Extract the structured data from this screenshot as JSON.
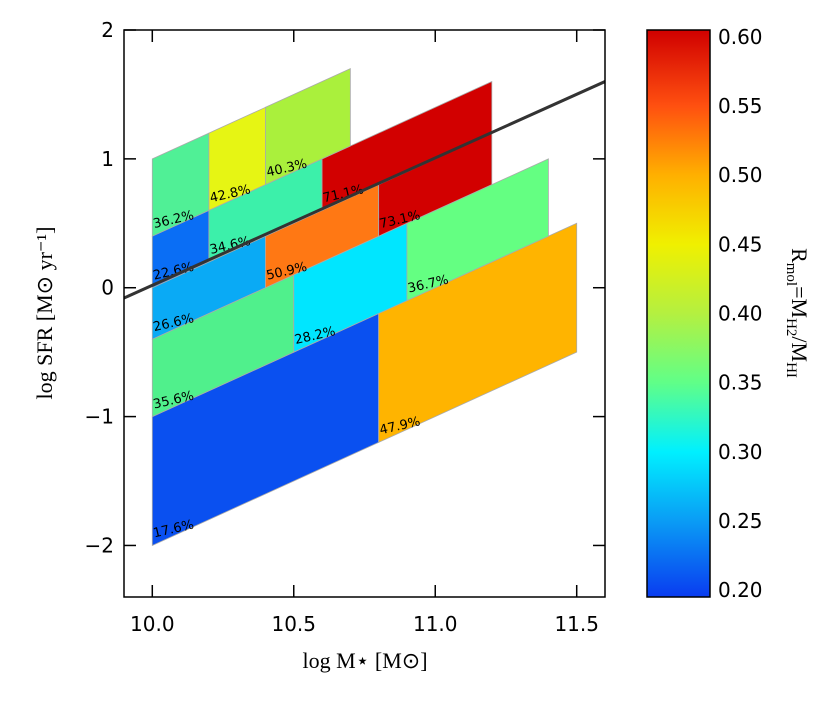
{
  "chart_data": {
    "type": "heatmap",
    "xlabel": "log M⋆ [M⊙]",
    "ylabel": "log SFR [M⊙ yr⁻¹]",
    "colorbar_label_parts": [
      "R",
      "mol",
      "=M",
      "H2",
      "/M",
      "HI"
    ],
    "xlim": [
      9.9,
      11.6
    ],
    "ylim": [
      -2.4,
      2.0
    ],
    "xticks": [
      {
        "value": 10.0,
        "label": "10.0"
      },
      {
        "value": 10.5,
        "label": "10.5"
      },
      {
        "value": 11.0,
        "label": "11.0"
      },
      {
        "value": 11.5,
        "label": "11.5"
      }
    ],
    "yticks": [
      {
        "value": -2,
        "label": "−2"
      },
      {
        "value": -1,
        "label": "−1"
      },
      0,
      1,
      2
    ],
    "clim": [
      0.195,
      0.605
    ],
    "cticks": [
      {
        "value": 0.2,
        "label": "0.20"
      },
      {
        "value": 0.25,
        "label": "0.25"
      },
      {
        "value": 0.3,
        "label": "0.30"
      },
      {
        "value": 0.35,
        "label": "0.35"
      },
      {
        "value": 0.4,
        "label": "0.40"
      },
      {
        "value": 0.45,
        "label": "0.45"
      },
      {
        "value": 0.5,
        "label": "0.50"
      },
      {
        "value": 0.55,
        "label": "0.55"
      },
      {
        "value": 0.6,
        "label": "0.60"
      }
    ],
    "slope": 1,
    "cells": [
      {
        "x": [
          10.0,
          10.8
        ],
        "y": [
          -2.0,
          -1.0
        ],
        "value": 17.6,
        "value_label": "17.6%",
        "color": "#0a50f0"
      },
      {
        "x": [
          10.8,
          11.5
        ],
        "y": [
          -1.2,
          -0.2
        ],
        "value": 47.9,
        "value_label": "47.9%",
        "color": "#ffb400"
      },
      {
        "x": [
          10.0,
          10.5
        ],
        "y": [
          -1.0,
          -0.4
        ],
        "value": 35.6,
        "value_label": "35.6%",
        "color": "#50f08c"
      },
      {
        "x": [
          10.5,
          10.9
        ],
        "y": [
          -0.5,
          0.1
        ],
        "value": 28.2,
        "value_label": "28.2%",
        "color": "#00e6ff"
      },
      {
        "x": [
          10.9,
          11.4
        ],
        "y": [
          -0.1,
          0.5
        ],
        "value": 36.7,
        "value_label": "36.7%",
        "color": "#64ff82"
      },
      {
        "x": [
          10.0,
          10.4
        ],
        "y": [
          -0.4,
          0.0
        ],
        "value": 26.6,
        "value_label": "26.6%",
        "color": "#0aaaf5"
      },
      {
        "x": [
          10.4,
          10.8
        ],
        "y": [
          0.0,
          0.4
        ],
        "value": 50.9,
        "value_label": "50.9%",
        "color": "#ff7814"
      },
      {
        "x": [
          10.8,
          11.2
        ],
        "y": [
          0.4,
          0.8
        ],
        "value": 73.1,
        "value_label": "73.1%",
        "color": "#d20000"
      },
      {
        "x": [
          10.0,
          10.2
        ],
        "y": [
          0.0,
          0.4
        ],
        "value": 22.6,
        "value_label": "22.6%",
        "color": "#0a6ef5"
      },
      {
        "x": [
          10.2,
          10.6
        ],
        "y": [
          0.2,
          0.6
        ],
        "value": 34.6,
        "value_label": "34.6%",
        "color": "#3cf0aa"
      },
      {
        "x": [
          10.6,
          11.2
        ],
        "y": [
          0.6,
          1.0
        ],
        "value": 71.1,
        "value_label": "71.1%",
        "color": "#d20000"
      },
      {
        "x": [
          10.0,
          10.2
        ],
        "y": [
          0.4,
          1.0
        ],
        "value": 36.2,
        "value_label": "36.2%",
        "color": "#50f096"
      },
      {
        "x": [
          10.2,
          10.4
        ],
        "y": [
          0.6,
          1.2
        ],
        "value": 42.8,
        "value_label": "42.8%",
        "color": "#e6f514"
      },
      {
        "x": [
          10.4,
          10.7
        ],
        "y": [
          0.8,
          1.4
        ],
        "value": 40.3,
        "value_label": "40.3%",
        "color": "#aaf03c"
      }
    ],
    "line": {
      "x": [
        9.9,
        11.6
      ],
      "y": [
        -0.08,
        1.6
      ],
      "color": "#333333"
    }
  }
}
